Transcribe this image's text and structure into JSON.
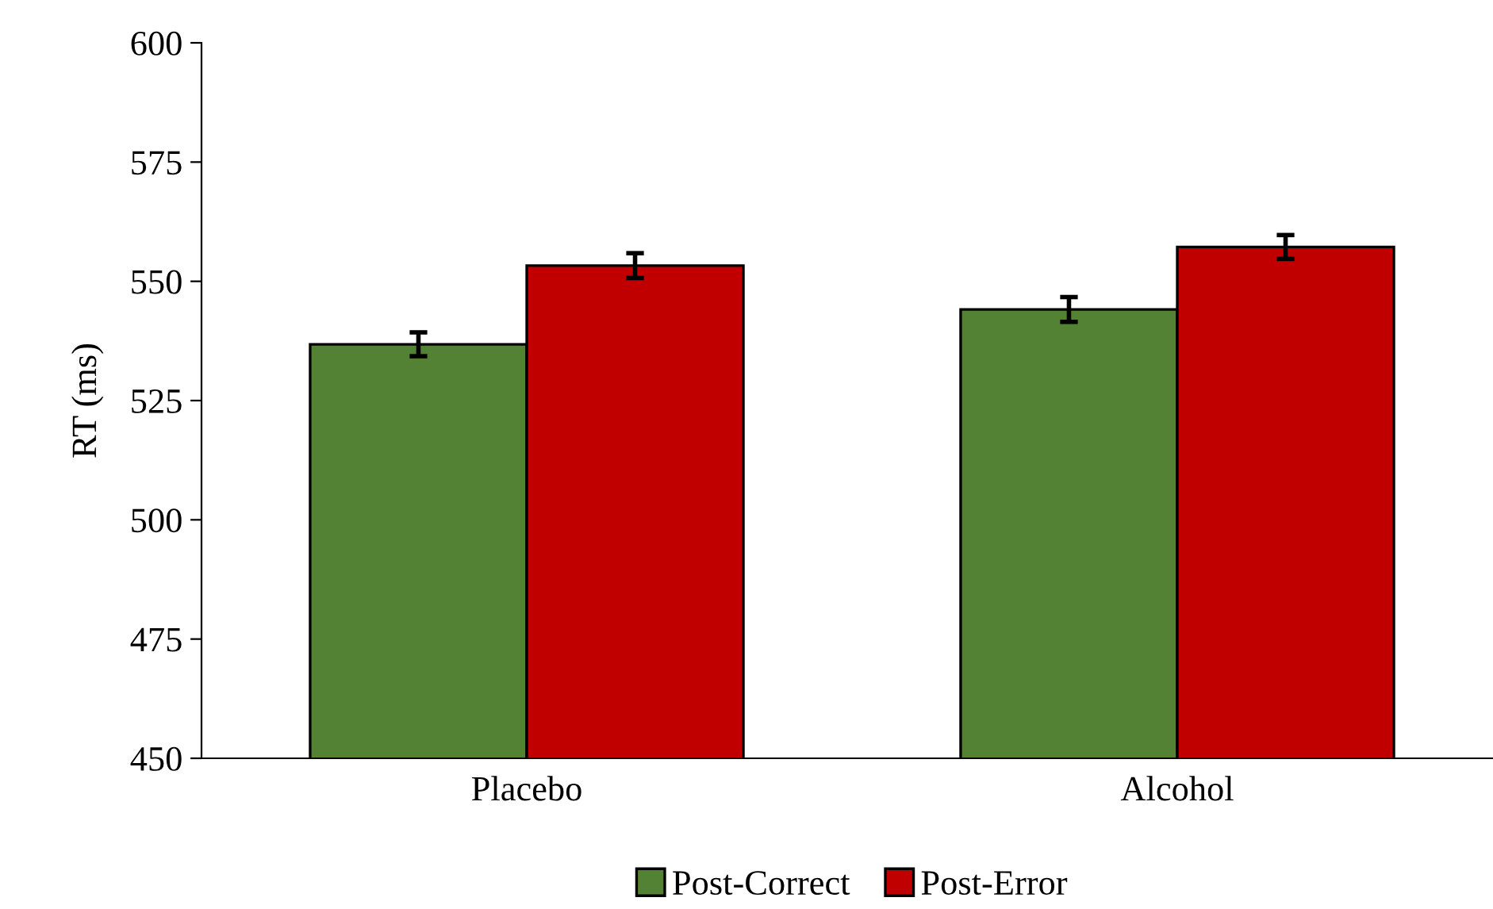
{
  "chart_data": {
    "type": "bar",
    "ylabel": "RT (ms)",
    "categories": [
      "Placebo",
      "Alcohol"
    ],
    "series": [
      {
        "name": "Post-Correct",
        "color": "#548235",
        "values": [
          536.8,
          544.1
        ],
        "errors": [
          2.5,
          2.6
        ]
      },
      {
        "name": "Post-Error",
        "color": "#c00000",
        "values": [
          553.3,
          557.2
        ],
        "errors": [
          2.6,
          2.5
        ]
      }
    ],
    "ylim": [
      450,
      600
    ],
    "yticks": [
      450,
      475,
      500,
      525,
      550,
      575,
      600
    ],
    "grid": false,
    "legend": "bottom"
  }
}
